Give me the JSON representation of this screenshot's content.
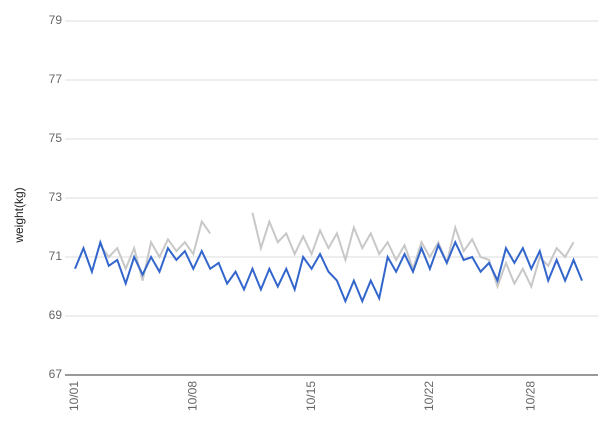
{
  "chart_data": {
    "type": "line",
    "y_label": "weight(kg)",
    "categories": [
      "10/01",
      null,
      null,
      null,
      null,
      null,
      null,
      null,
      null,
      null,
      null,
      null,
      null,
      null,
      "10/08",
      null,
      null,
      null,
      null,
      null,
      null,
      null,
      null,
      null,
      null,
      null,
      null,
      null,
      "10/15",
      null,
      null,
      null,
      null,
      null,
      null,
      null,
      null,
      null,
      null,
      null,
      null,
      null,
      "10/22",
      null,
      null,
      null,
      null,
      null,
      null,
      null,
      null,
      null,
      null,
      null,
      "10/28",
      null,
      null,
      null,
      null,
      null,
      null
    ],
    "series": [
      {
        "color": "#3366cc",
        "values": [
          70.6,
          71.3,
          70.5,
          71.5,
          70.7,
          70.9,
          70.1,
          71.0,
          70.4,
          71.0,
          70.5,
          71.3,
          70.9,
          71.2,
          70.6,
          71.2,
          70.6,
          70.8,
          70.1,
          70.5,
          69.9,
          70.6,
          69.9,
          70.6,
          70.0,
          70.6,
          69.9,
          71.0,
          70.6,
          71.1,
          70.5,
          70.2,
          69.5,
          70.2,
          69.5,
          70.2,
          69.6,
          71.0,
          70.5,
          71.1,
          70.5,
          71.3,
          70.6,
          71.4,
          70.8,
          71.5,
          70.9,
          71.0,
          70.5,
          70.8,
          70.2,
          71.3,
          70.8,
          71.3,
          70.6,
          71.2,
          70.2,
          70.9,
          70.2,
          70.9,
          70.2
        ]
      },
      {
        "color": "#c8c8c8",
        "values": [
          null,
          null,
          null,
          71.4,
          71.0,
          71.3,
          70.6,
          71.3,
          70.2,
          71.5,
          71.0,
          71.6,
          71.2,
          71.5,
          71.1,
          72.2,
          71.8,
          null,
          null,
          null,
          null,
          72.5,
          71.3,
          72.2,
          71.5,
          71.8,
          71.1,
          71.7,
          71.1,
          71.9,
          71.3,
          71.8,
          70.9,
          72.0,
          71.3,
          71.8,
          71.1,
          71.5,
          70.9,
          71.4,
          70.6,
          71.5,
          71.0,
          71.5,
          70.8,
          72.0,
          71.2,
          71.6,
          71.0,
          70.9,
          70.0,
          70.8,
          70.1,
          70.6,
          70.0,
          71.0,
          70.7,
          71.3,
          71.0,
          71.5,
          null
        ]
      }
    ],
    "ylim": [
      67,
      79
    ],
    "yticks": [
      67,
      69,
      71,
      73,
      75,
      77,
      79
    ],
    "grid": true
  }
}
